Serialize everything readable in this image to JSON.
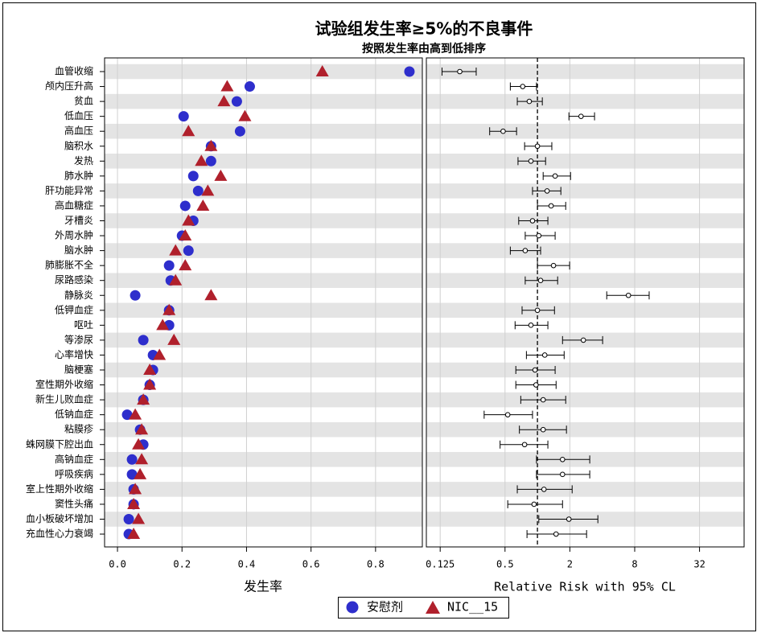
{
  "chart_data": [
    {
      "type": "dot",
      "title": "试验组发生率≥5%的不良事件",
      "subtitle": "按照发生率由高到低排序",
      "x_label": "发生率",
      "categories": [
        "血管收缩",
        "颅内压升高",
        "贫血",
        "低血压",
        "高血压",
        "脑积水",
        "发热",
        "肺水肿",
        "肝功能异常",
        "高血糖症",
        "牙槽炎",
        "外周水肿",
        "脑水肿",
        "肺膨胀不全",
        "尿路感染",
        "静脉炎",
        "低钾血症",
        "呕吐",
        "等渗尿",
        "心率增快",
        "脑梗塞",
        "室性期外收缩",
        "新生儿败血症",
        "低钠血症",
        "粘膜疹",
        "蛛网膜下腔出血",
        "高钠血症",
        "呼吸疾病",
        "室上性期外收缩",
        "窦性头痛",
        "血小板破坏增加",
        "充血性心力衰竭"
      ],
      "series": [
        {
          "name": "安慰剂",
          "color": "#2e2ecc",
          "marker": "circle",
          "values": [
            0.905,
            0.41,
            0.37,
            0.205,
            0.38,
            0.29,
            0.29,
            0.235,
            0.25,
            0.21,
            0.235,
            0.2,
            0.22,
            0.16,
            0.165,
            0.055,
            0.16,
            0.16,
            0.08,
            0.11,
            0.11,
            0.1,
            0.08,
            0.03,
            0.07,
            0.08,
            0.045,
            0.045,
            0.05,
            0.05,
            0.035,
            0.035
          ]
        },
        {
          "name": "NIC__15",
          "color": "#b0202c",
          "marker": "triangle",
          "values": [
            0.635,
            0.34,
            0.33,
            0.395,
            0.22,
            0.29,
            0.26,
            0.32,
            0.28,
            0.265,
            0.22,
            0.21,
            0.18,
            0.21,
            0.18,
            0.29,
            0.16,
            0.14,
            0.175,
            0.13,
            0.1,
            0.1,
            0.08,
            0.055,
            0.075,
            0.065,
            0.075,
            0.07,
            0.055,
            0.05,
            0.065,
            0.05
          ]
        }
      ],
      "xlim": [
        -0.04,
        0.945
      ],
      "xticks": [
        {
          "value": 0,
          "label": "0.0"
        },
        0.2,
        0.4,
        0.6,
        0.8
      ],
      "grid": true,
      "legend": "bottom"
    },
    {
      "type": "forest",
      "x_label": "Relative Risk with 95% CL",
      "log_x": true,
      "refline": 1,
      "values": [
        0.19,
        0.73,
        0.84,
        2.54,
        0.48,
        1.0,
        0.87,
        1.46,
        1.23,
        1.34,
        0.9,
        1.03,
        0.77,
        1.41,
        1.07,
        7.0,
        1.0,
        0.87,
        2.67,
        1.17,
        0.95,
        0.97,
        1.13,
        0.53,
        1.13,
        0.76,
        1.71,
        1.71,
        1.15,
        0.93,
        1.96,
        1.49
      ],
      "lower": [
        0.13,
        0.56,
        0.65,
        1.96,
        0.36,
        0.76,
        0.66,
        1.13,
        0.9,
        1.0,
        0.67,
        0.77,
        0.56,
        1.0,
        0.77,
        4.4,
        0.72,
        0.62,
        1.71,
        0.79,
        0.63,
        0.63,
        0.7,
        0.32,
        0.68,
        0.45,
        0.98,
        0.98,
        0.65,
        0.53,
        1.03,
        0.8
      ],
      "upper": [
        0.27,
        0.98,
        1.11,
        3.39,
        0.64,
        1.36,
        1.19,
        2.03,
        1.65,
        1.83,
        1.25,
        1.46,
        1.07,
        1.99,
        1.54,
        10.9,
        1.44,
        1.25,
        4.03,
        1.77,
        1.46,
        1.49,
        1.83,
        0.9,
        1.86,
        1.25,
        3.06,
        3.06,
        2.1,
        1.71,
        3.64,
        2.86
      ],
      "xlim": [
        0.093,
        83
      ],
      "xticks": [
        0.125,
        0.5,
        2,
        8,
        32
      ],
      "grid": true
    }
  ]
}
